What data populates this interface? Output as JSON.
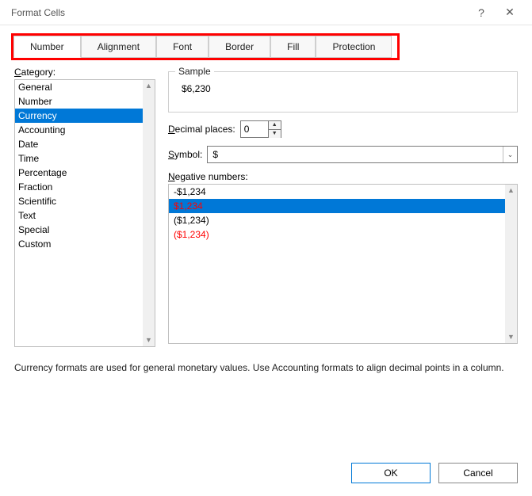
{
  "window": {
    "title": "Format Cells",
    "help_icon": "?",
    "close_icon": "✕"
  },
  "tabs": {
    "items": [
      "Number",
      "Alignment",
      "Font",
      "Border",
      "Fill",
      "Protection"
    ],
    "active_index": 0,
    "highlight_border_color": "#ff0000"
  },
  "category": {
    "label": "Category:",
    "items": [
      "General",
      "Number",
      "Currency",
      "Accounting",
      "Date",
      "Time",
      "Percentage",
      "Fraction",
      "Scientific",
      "Text",
      "Special",
      "Custom"
    ],
    "selected_index": 2
  },
  "sample": {
    "legend": "Sample",
    "value": "$6,230"
  },
  "decimal": {
    "label": "Decimal places:",
    "value": "0"
  },
  "symbol": {
    "label": "Symbol:",
    "value": "$"
  },
  "negative": {
    "label": "Negative numbers:",
    "items": [
      {
        "text": "-$1,234",
        "color": "#000000"
      },
      {
        "text": "$1,234",
        "color": "#ff0000"
      },
      {
        "text": "($1,234)",
        "color": "#000000"
      },
      {
        "text": "($1,234)",
        "color": "#ff0000"
      }
    ],
    "selected_index": 1,
    "selection_bg": "#0078d7"
  },
  "description": "Currency formats are used for general monetary values.  Use Accounting formats to align decimal points in a column.",
  "buttons": {
    "ok": "OK",
    "cancel": "Cancel"
  }
}
